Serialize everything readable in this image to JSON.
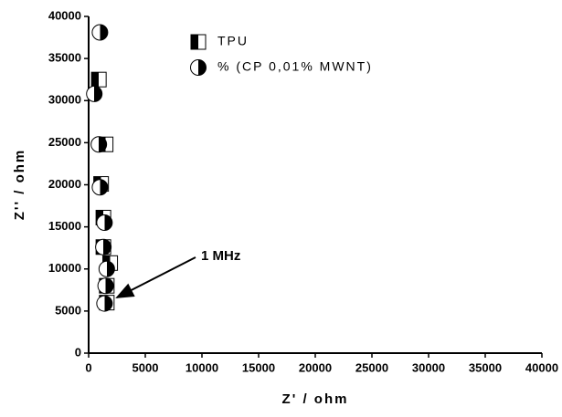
{
  "chart_data": {
    "type": "scatter",
    "x_label": "Z' / ohm",
    "y_label": "Z'' / ohm",
    "xlim": [
      0,
      40000
    ],
    "ylim": [
      0,
      40000
    ],
    "xticks": [
      0,
      5000,
      10000,
      15000,
      20000,
      25000,
      30000,
      35000,
      40000
    ],
    "yticks": [
      0,
      5000,
      10000,
      15000,
      20000,
      25000,
      30000,
      35000,
      40000
    ],
    "annotation": "1 MHz",
    "legend": "top-right",
    "series": [
      {
        "name": "TPU",
        "color": "#000000",
        "marker": "square",
        "x": [
          1600,
          1600,
          1900,
          1300,
          1300,
          1100,
          1500,
          900
        ],
        "y": [
          6000,
          8000,
          10700,
          12600,
          16100,
          20100,
          24800,
          32500
        ]
      },
      {
        "name": "% (CP 0,01% MWNT)",
        "color": "#000000",
        "marker": "circle",
        "x": [
          1400,
          1500,
          1600,
          1300,
          1400,
          1000,
          900,
          500,
          1000
        ],
        "y": [
          5900,
          8000,
          10000,
          12600,
          15500,
          19700,
          24800,
          30800,
          38100
        ]
      }
    ]
  }
}
